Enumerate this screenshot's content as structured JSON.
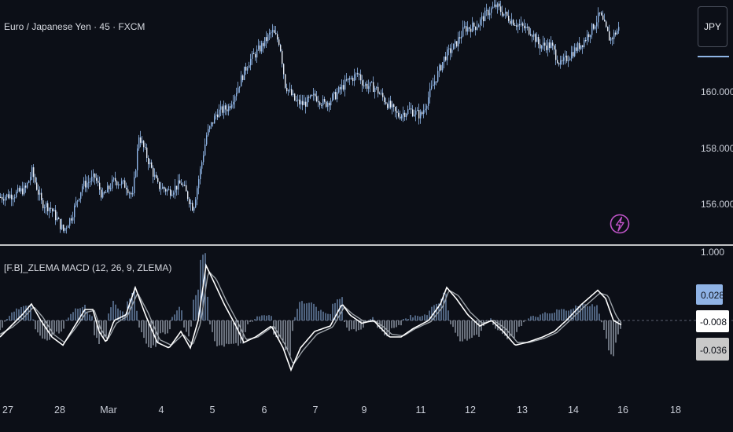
{
  "price_pane": {
    "title": "Euro / Japanese Yen · 45 · FXCM",
    "currency_button": "JPY",
    "y_ticks": [
      "160.000",
      "158.000",
      "156.000"
    ]
  },
  "indicator_pane": {
    "title": "[F.B]_ZLEMA MACD (12, 26, 9, ZLEMA)",
    "top_tick": "1.000",
    "flags": [
      {
        "label": "0.028",
        "bg": "#8fb3e6",
        "fg": "#0c0f17"
      },
      {
        "label": "-0.008",
        "bg": "#ffffff",
        "fg": "#0c0f17"
      },
      {
        "label": "-0.036",
        "bg": "#c9c9c9",
        "fg": "#0c0f17"
      }
    ]
  },
  "x_axis": {
    "labels": [
      "27",
      "28",
      "Mar",
      "4",
      "5",
      "6",
      "7",
      "9",
      "11",
      "12",
      "13",
      "14",
      "16",
      "18"
    ]
  },
  "icons": [
    "lightning-icon"
  ],
  "colors": {
    "background": "#0c0f17",
    "candle": "#8fb5e6",
    "macd_line": "#ffffff",
    "signal_line": "#9aa0a6",
    "histogram": "#8fb5e6",
    "zero_line": "#5d6270",
    "pane_divider": "#ffffff",
    "lightning": "#c054c8"
  },
  "chart_data": [
    {
      "type": "candlestick",
      "title": "Euro / Japanese Yen · 45 · FXCM",
      "ylim": [
        154.8,
        163.4
      ],
      "y_ticks": [
        160,
        158,
        156
      ],
      "x_ticks": [
        "27",
        "28",
        "Mar",
        "4",
        "5",
        "6",
        "7",
        "9",
        "11",
        "12",
        "13",
        "14",
        "16",
        "18"
      ],
      "close_path": [
        [
          0,
          156.2
        ],
        [
          18,
          156.3
        ],
        [
          32,
          156.5
        ],
        [
          40,
          157.1
        ],
        [
          52,
          156.0
        ],
        [
          64,
          155.8
        ],
        [
          80,
          155.0
        ],
        [
          90,
          155.5
        ],
        [
          104,
          156.6
        ],
        [
          120,
          156.9
        ],
        [
          130,
          156.2
        ],
        [
          145,
          156.8
        ],
        [
          160,
          156.6
        ],
        [
          168,
          156.2
        ],
        [
          176,
          158.4
        ],
        [
          188,
          157.5
        ],
        [
          200,
          156.6
        ],
        [
          215,
          156.4
        ],
        [
          230,
          156.7
        ],
        [
          245,
          155.8
        ],
        [
          255,
          157.3
        ],
        [
          262,
          158.4
        ],
        [
          275,
          159.2
        ],
        [
          290,
          159.4
        ],
        [
          300,
          160.0
        ],
        [
          315,
          161.0
        ],
        [
          330,
          161.5
        ],
        [
          345,
          162.1
        ],
        [
          355,
          161.7
        ],
        [
          362,
          160.2
        ],
        [
          375,
          159.6
        ],
        [
          385,
          159.5
        ],
        [
          400,
          159.8
        ],
        [
          412,
          159.5
        ],
        [
          425,
          159.8
        ],
        [
          440,
          160.3
        ],
        [
          455,
          160.6
        ],
        [
          462,
          160.2
        ],
        [
          476,
          160.1
        ],
        [
          490,
          159.6
        ],
        [
          505,
          159.1
        ],
        [
          520,
          159.3
        ],
        [
          535,
          159.1
        ],
        [
          550,
          160.2
        ],
        [
          565,
          161.2
        ],
        [
          578,
          161.6
        ],
        [
          590,
          162.2
        ],
        [
          605,
          162.3
        ],
        [
          620,
          162.8
        ],
        [
          630,
          163.0
        ],
        [
          645,
          162.6
        ],
        [
          660,
          162.3
        ],
        [
          675,
          162.1
        ],
        [
          685,
          161.6
        ],
        [
          700,
          161.6
        ],
        [
          712,
          160.9
        ],
        [
          725,
          161.3
        ],
        [
          740,
          161.7
        ],
        [
          752,
          162.2
        ],
        [
          762,
          162.7
        ],
        [
          775,
          161.8
        ],
        [
          786,
          162.2
        ]
      ]
    },
    {
      "type": "line",
      "title": "[F.B]_ZLEMA MACD (12, 26, 9, ZLEMA)",
      "ylim": [
        -0.09,
        0.1
      ],
      "series": [
        {
          "values_path": [
            [
              0,
              -0.03
            ],
            [
              14,
              -0.01
            ],
            [
              28,
              0.01
            ],
            [
              40,
              0.03
            ],
            [
              52,
              0.0
            ],
            [
              66,
              -0.03
            ],
            [
              80,
              -0.045
            ],
            [
              95,
              -0.01
            ],
            [
              108,
              0.02
            ],
            [
              118,
              0.02
            ],
            [
              126,
              -0.02
            ],
            [
              135,
              -0.04
            ],
            [
              145,
              0.0
            ],
            [
              160,
              0.01
            ],
            [
              172,
              0.06
            ],
            [
              185,
              0.01
            ],
            [
              200,
              -0.04
            ],
            [
              215,
              -0.05
            ],
            [
              230,
              -0.02
            ],
            [
              242,
              -0.05
            ],
            [
              252,
              0.0
            ],
            [
              262,
              0.1
            ],
            [
              272,
              0.07
            ],
            [
              285,
              0.03
            ],
            [
              300,
              -0.01
            ],
            [
              310,
              -0.04
            ],
            [
              325,
              -0.03
            ],
            [
              345,
              -0.01
            ],
            [
              360,
              -0.05
            ],
            [
              370,
              -0.09
            ],
            [
              382,
              -0.05
            ],
            [
              400,
              -0.02
            ],
            [
              420,
              -0.01
            ],
            [
              435,
              0.03
            ],
            [
              445,
              0.01
            ],
            [
              460,
              -0.005
            ],
            [
              475,
              0.0
            ],
            [
              485,
              -0.015
            ],
            [
              495,
              -0.03
            ],
            [
              510,
              -0.03
            ],
            [
              525,
              -0.015
            ],
            [
              545,
              0.0
            ],
            [
              560,
              0.03
            ],
            [
              568,
              0.06
            ],
            [
              580,
              0.04
            ],
            [
              595,
              0.01
            ],
            [
              610,
              -0.01
            ],
            [
              625,
              0.0
            ],
            [
              640,
              -0.02
            ],
            [
              655,
              -0.045
            ],
            [
              670,
              -0.04
            ],
            [
              690,
              -0.03
            ],
            [
              705,
              -0.02
            ],
            [
              720,
              0.0
            ],
            [
              740,
              0.03
            ],
            [
              760,
              0.055
            ],
            [
              770,
              0.04
            ],
            [
              780,
              0.0
            ],
            [
              790,
              -0.008
            ]
          ]
        },
        {
          "values_path": [
            [
              0,
              -0.025
            ],
            [
              16,
              -0.012
            ],
            [
              30,
              0.005
            ],
            [
              43,
              0.025
            ],
            [
              55,
              0.005
            ],
            [
              68,
              -0.025
            ],
            [
              82,
              -0.04
            ],
            [
              97,
              -0.012
            ],
            [
              110,
              0.015
            ],
            [
              120,
              0.018
            ],
            [
              128,
              -0.015
            ],
            [
              137,
              -0.035
            ],
            [
              148,
              -0.005
            ],
            [
              162,
              0.008
            ],
            [
              175,
              0.05
            ],
            [
              188,
              0.015
            ],
            [
              203,
              -0.035
            ],
            [
              218,
              -0.045
            ],
            [
              233,
              -0.025
            ],
            [
              245,
              -0.045
            ],
            [
              255,
              -0.005
            ],
            [
              265,
              0.09
            ],
            [
              275,
              0.075
            ],
            [
              288,
              0.035
            ],
            [
              303,
              -0.005
            ],
            [
              313,
              -0.035
            ],
            [
              328,
              -0.03
            ],
            [
              348,
              -0.01
            ],
            [
              363,
              -0.045
            ],
            [
              373,
              -0.08
            ],
            [
              385,
              -0.055
            ],
            [
              403,
              -0.025
            ],
            [
              423,
              -0.012
            ],
            [
              438,
              0.025
            ],
            [
              448,
              0.012
            ],
            [
              463,
              -0.002
            ],
            [
              478,
              -0.002
            ],
            [
              488,
              -0.012
            ],
            [
              498,
              -0.025
            ],
            [
              513,
              -0.028
            ],
            [
              528,
              -0.015
            ],
            [
              548,
              -0.002
            ],
            [
              563,
              0.025
            ],
            [
              571,
              0.055
            ],
            [
              583,
              0.045
            ],
            [
              598,
              0.015
            ],
            [
              613,
              -0.005
            ],
            [
              628,
              0.0
            ],
            [
              643,
              -0.015
            ],
            [
              658,
              -0.04
            ],
            [
              673,
              -0.04
            ],
            [
              693,
              -0.032
            ],
            [
              708,
              -0.022
            ],
            [
              723,
              -0.002
            ],
            [
              743,
              0.025
            ],
            [
              763,
              0.05
            ],
            [
              773,
              0.045
            ],
            [
              783,
              0.01
            ],
            [
              790,
              -0.005
            ]
          ]
        }
      ],
      "current_values": [
        0.028,
        -0.008,
        -0.036
      ]
    }
  ]
}
